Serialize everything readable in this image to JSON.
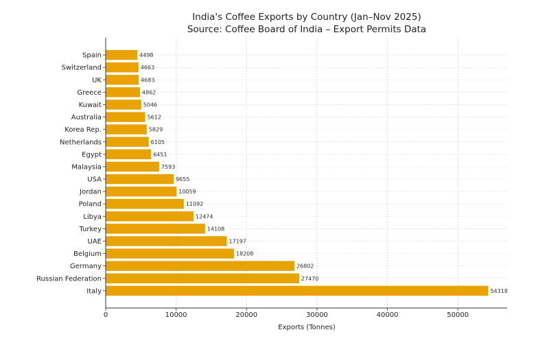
{
  "chart_data": {
    "type": "bar",
    "orientation": "horizontal",
    "title": "India's Coffee Exports by Country (Jan–Nov 2025)",
    "subtitle": "Source: Coffee Board of India – Export Permits Data",
    "xlabel": "Exports (Tonnes)",
    "ylabel": "",
    "categories": [
      "Italy",
      "Russian Federation",
      "Germany",
      "Belgium",
      "UAE",
      "Turkey",
      "Libya",
      "Poland",
      "Jordan",
      "USA",
      "Malaysia",
      "Egypt",
      "Netherlands",
      "Korea Rep.",
      "Australia",
      "Kuwait",
      "Greece",
      "UK",
      "Switzerland",
      "Spain"
    ],
    "values": [
      54318,
      27470,
      26802,
      18208,
      17197,
      14108,
      12474,
      11092,
      10059,
      9655,
      7593,
      6451,
      6105,
      5829,
      5612,
      5046,
      4862,
      4683,
      4663,
      4498
    ],
    "xlim": [
      0,
      57000
    ],
    "xticks": [
      0,
      10000,
      20000,
      30000,
      40000,
      50000
    ],
    "grid": true,
    "bar_color": "#E8A202",
    "data_labels": true
  }
}
